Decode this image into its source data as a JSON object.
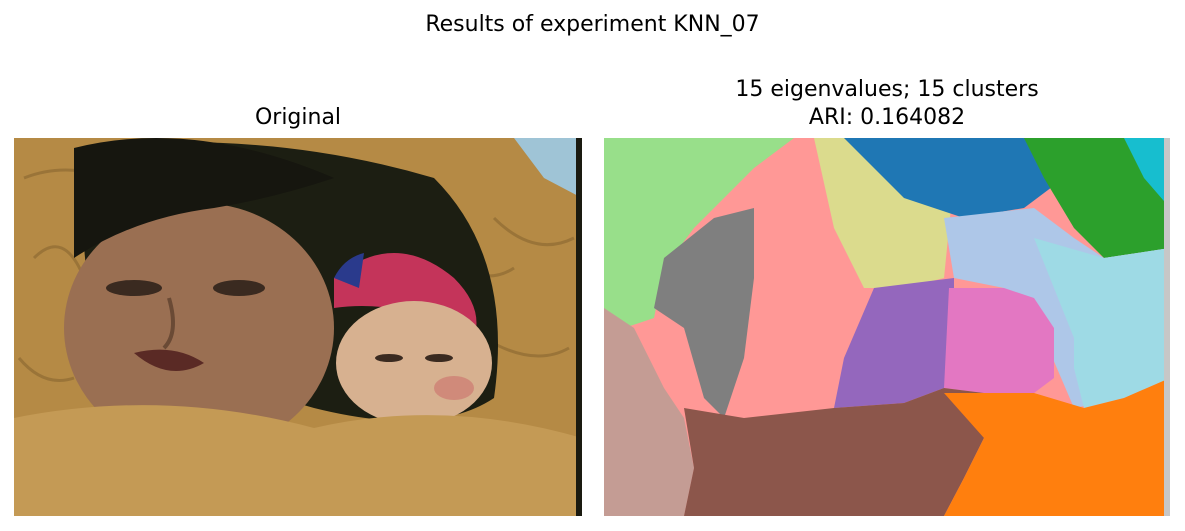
{
  "figure": {
    "suptitle": "Results of experiment KNN_07",
    "left_title": "Original",
    "right_title_line1": "15 eigenvalues; 15 clusters",
    "right_title_line2": "ARI: 0.164082"
  },
  "left_image": {
    "description_icon": "photo-icon",
    "colors": {
      "fur": "#b58a45",
      "fur_dark": "#7a5a2a",
      "face": "#9a6f52",
      "shadow": "#1a1a10",
      "sky": "#9fc4d6",
      "baby_face": "#d7b190",
      "hood_red": "#c4345a",
      "hood_blue": "#2a3a8c"
    }
  },
  "right_image": {
    "description_icon": "segmentation-map-icon",
    "colors": {
      "light_green": "#98df8a",
      "pink": "#ff9896",
      "khaki": "#dbdb8d",
      "blue": "#1f77b4",
      "green": "#2ca02c",
      "cyan": "#17becf",
      "light_blue": "#aec7e8",
      "pale_cyan": "#9edae5",
      "gray": "#7f7f7f",
      "purple": "#9467bd",
      "orchid": "#e377c2",
      "rosy_brown": "#c49c94",
      "brown": "#8c564b",
      "orange": "#ff7f0e",
      "light_gray": "#c7c7c7"
    }
  }
}
